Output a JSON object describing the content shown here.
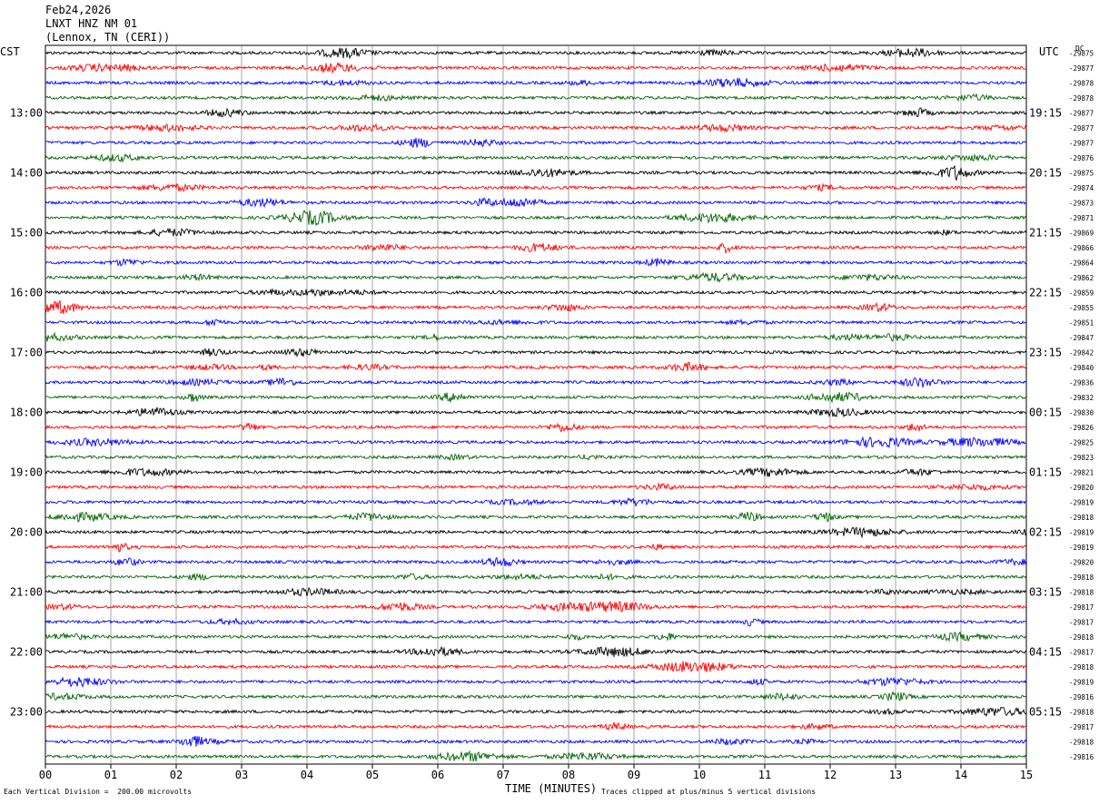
{
  "header": {
    "date": "Feb24,2026",
    "station": "LNXT HNZ NM 01",
    "location": "(Lennox, TN (CERI))"
  },
  "axes": {
    "left_zone": "CST",
    "right_zone": "UTC",
    "dc_label": "DC",
    "xlabel": "TIME (MINUTES)"
  },
  "footer": {
    "scale_note": "Each Vertical Division =  200.00 microvolts",
    "clip_note": "Traces clipped at plus/minus 5 vertical divisions"
  },
  "colors": {
    "trace_cycle": [
      "#000000",
      "#ff0000",
      "#0000ff",
      "#006400"
    ],
    "grid": "#808080"
  },
  "chart_data": {
    "type": "line",
    "title": "",
    "x_ticks": [
      "00",
      "01",
      "02",
      "03",
      "04",
      "05",
      "06",
      "07",
      "08",
      "09",
      "10",
      "11",
      "12",
      "13",
      "14",
      "15"
    ],
    "xlim": [
      0,
      15
    ],
    "row_minutes": 15,
    "row_count": 48,
    "left_time_labels": [
      {
        "row": 4,
        "label": "13:00"
      },
      {
        "row": 8,
        "label": "14:00"
      },
      {
        "row": 12,
        "label": "15:00"
      },
      {
        "row": 16,
        "label": "16:00"
      },
      {
        "row": 20,
        "label": "17:00"
      },
      {
        "row": 24,
        "label": "18:00"
      },
      {
        "row": 28,
        "label": "19:00"
      },
      {
        "row": 32,
        "label": "20:00"
      },
      {
        "row": 36,
        "label": "21:00"
      },
      {
        "row": 40,
        "label": "22:00"
      },
      {
        "row": 44,
        "label": "23:00"
      }
    ],
    "right_time_labels": [
      {
        "row": 4,
        "label": "19:15"
      },
      {
        "row": 8,
        "label": "20:15"
      },
      {
        "row": 12,
        "label": "21:15"
      },
      {
        "row": 16,
        "label": "22:15"
      },
      {
        "row": 20,
        "label": "23:15"
      },
      {
        "row": 24,
        "label": "00:15"
      },
      {
        "row": 28,
        "label": "01:15"
      },
      {
        "row": 32,
        "label": "02:15"
      },
      {
        "row": 36,
        "label": "03:15"
      },
      {
        "row": 40,
        "label": "04:15"
      },
      {
        "row": 44,
        "label": "05:15"
      }
    ],
    "dc_offsets": [
      "-29875",
      "-29877",
      "-29878",
      "-29878",
      "-29877",
      "-29877",
      "-29877",
      "-29876",
      "-29875",
      "-29874",
      "-29873",
      "-29871",
      "-29869",
      "-29866",
      "-29864",
      "-29862",
      "-29859",
      "-29855",
      "-29851",
      "-29847",
      "-29842",
      "-29840",
      "-29836",
      "-29832",
      "-29830",
      "-29826",
      "-29825",
      "-29823",
      "-29821",
      "-29820",
      "-29819",
      "-29818",
      "-29819",
      "-29819",
      "-29820",
      "-29818",
      "-29818",
      "-29817",
      "-29817",
      "-29818",
      "-29817",
      "-29818",
      "-29819",
      "-29816",
      "-29818",
      "-29817",
      "-29818",
      "-29816"
    ]
  }
}
